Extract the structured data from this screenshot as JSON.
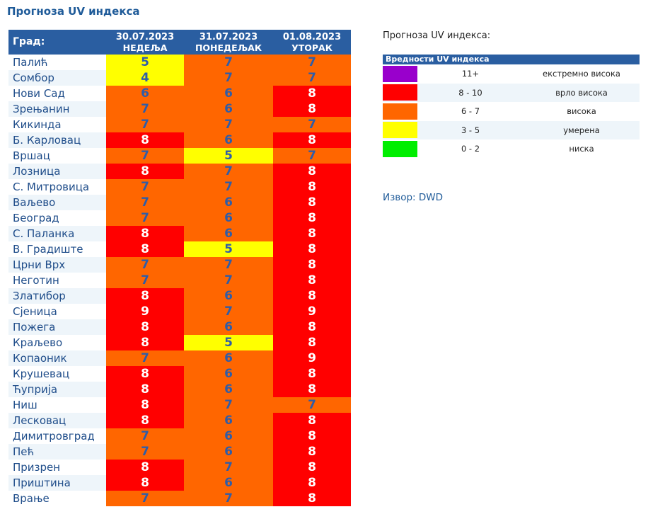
{
  "title": "Прогноза UV индекса",
  "table": {
    "city_header": "Град:",
    "days": [
      {
        "date": "30.07.2023",
        "weekday": "НЕДЕЉА"
      },
      {
        "date": "31.07.2023",
        "weekday": "ПОНЕДЕЉАК"
      },
      {
        "date": "01.08.2023",
        "weekday": "УТОРАК"
      }
    ],
    "rows": [
      {
        "city": "Палић",
        "values": [
          5,
          7,
          7
        ]
      },
      {
        "city": "Сомбор",
        "values": [
          4,
          7,
          7
        ]
      },
      {
        "city": "Нови Сад",
        "values": [
          6,
          6,
          8
        ]
      },
      {
        "city": "Зрењанин",
        "values": [
          7,
          6,
          8
        ]
      },
      {
        "city": "Кикинда",
        "values": [
          7,
          7,
          7
        ]
      },
      {
        "city": "Б. Карловац",
        "values": [
          8,
          6,
          8
        ]
      },
      {
        "city": "Вршац",
        "values": [
          7,
          5,
          7
        ]
      },
      {
        "city": "Лозница",
        "values": [
          8,
          7,
          8
        ]
      },
      {
        "city": "С. Митровица",
        "values": [
          7,
          7,
          8
        ]
      },
      {
        "city": "Ваљево",
        "values": [
          7,
          6,
          8
        ]
      },
      {
        "city": "Београд",
        "values": [
          7,
          6,
          8
        ]
      },
      {
        "city": "С. Паланка",
        "values": [
          8,
          6,
          8
        ]
      },
      {
        "city": "В. Градиште",
        "values": [
          8,
          5,
          8
        ]
      },
      {
        "city": "Црни Врх",
        "values": [
          7,
          7,
          8
        ]
      },
      {
        "city": "Неготин",
        "values": [
          7,
          7,
          8
        ]
      },
      {
        "city": "Златибор",
        "values": [
          8,
          6,
          8
        ]
      },
      {
        "city": "Сјеница",
        "values": [
          9,
          7,
          9
        ]
      },
      {
        "city": "Пожега",
        "values": [
          8,
          6,
          8
        ]
      },
      {
        "city": "Краљево",
        "values": [
          8,
          5,
          8
        ]
      },
      {
        "city": "Копаоник",
        "values": [
          7,
          6,
          9
        ]
      },
      {
        "city": "Крушевац",
        "values": [
          8,
          6,
          8
        ]
      },
      {
        "city": "Ћуприја",
        "values": [
          8,
          6,
          8
        ]
      },
      {
        "city": "Ниш",
        "values": [
          8,
          7,
          7
        ]
      },
      {
        "city": "Лесковац",
        "values": [
          8,
          6,
          8
        ]
      },
      {
        "city": "Димитровград",
        "values": [
          7,
          6,
          8
        ]
      },
      {
        "city": "Пећ",
        "values": [
          7,
          6,
          8
        ]
      },
      {
        "city": "Призрен",
        "values": [
          8,
          7,
          8
        ]
      },
      {
        "city": "Приштина",
        "values": [
          8,
          6,
          8
        ]
      },
      {
        "city": "Врање",
        "values": [
          7,
          7,
          8
        ]
      }
    ]
  },
  "legend": {
    "title": "Прогноза UV индекса:",
    "header": "Вредности UV индекса",
    "items": [
      {
        "color": "#9900cc",
        "range": "11+",
        "level": "екстремно висока"
      },
      {
        "color": "#ff0000",
        "range": "8 - 10",
        "level": "врло висока"
      },
      {
        "color": "#ff6600",
        "range": "6 - 7",
        "level": "висока"
      },
      {
        "color": "#ffff00",
        "range": "3 - 5",
        "level": "умерена"
      },
      {
        "color": "#00ee00",
        "range": "0 - 2",
        "level": "ниска"
      }
    ]
  },
  "source": "Извор: DWD"
}
